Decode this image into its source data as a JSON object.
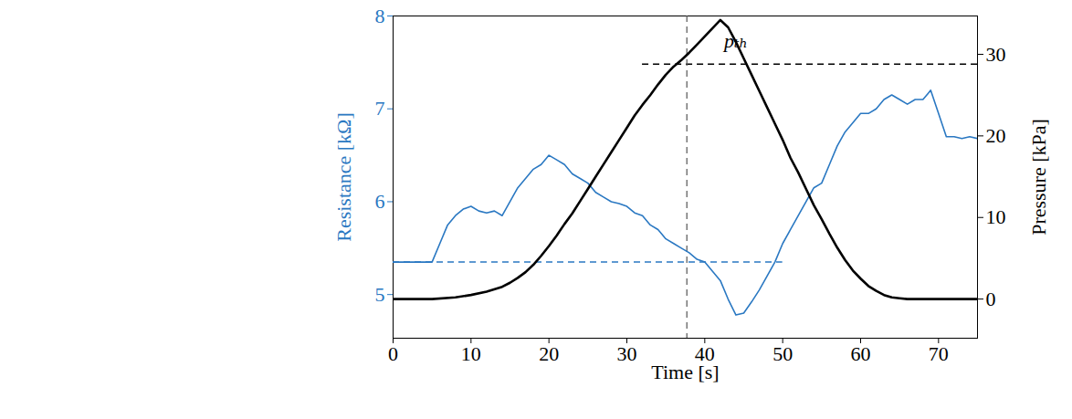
{
  "chart_data": {
    "type": "line",
    "xlabel": "Time [s]",
    "ylabel": "Resistance [kΩ]",
    "y2label": "Pressure [kPa]",
    "xlim": [
      0,
      75
    ],
    "xticks": [
      0,
      10,
      20,
      30,
      40,
      50,
      60,
      70
    ],
    "ylim": [
      4.53,
      8
    ],
    "yticks": [
      5,
      6,
      7,
      8
    ],
    "y2lim": [
      -4.8,
      34.7
    ],
    "y2ticks": [
      0,
      10,
      20,
      30
    ],
    "grid": false,
    "series": [
      {
        "name": "Resistance [kΩ]",
        "color": "#2a78c2",
        "axis": "y",
        "x": [
          0,
          5,
          6,
          7,
          8,
          9,
          10,
          11,
          12,
          13,
          14,
          15,
          16,
          17,
          18,
          19,
          20,
          21,
          22,
          23,
          24,
          25,
          26,
          27,
          28,
          29,
          30,
          31,
          32,
          33,
          34,
          35,
          36,
          37,
          38,
          39,
          40,
          41,
          42,
          43,
          44,
          45,
          46,
          47,
          48,
          49,
          50,
          51,
          52,
          53,
          54,
          55,
          56,
          57,
          58,
          59,
          60,
          61,
          62,
          63,
          64,
          65,
          66,
          67,
          68,
          69,
          70,
          71,
          72,
          73,
          74,
          75
        ],
        "values": [
          5.35,
          5.35,
          5.55,
          5.75,
          5.85,
          5.92,
          5.95,
          5.9,
          5.88,
          5.9,
          5.85,
          6.0,
          6.15,
          6.25,
          6.35,
          6.4,
          6.5,
          6.45,
          6.4,
          6.3,
          6.25,
          6.2,
          6.1,
          6.05,
          6.0,
          5.98,
          5.95,
          5.88,
          5.85,
          5.75,
          5.7,
          5.6,
          5.55,
          5.5,
          5.45,
          5.38,
          5.35,
          5.25,
          5.15,
          4.95,
          4.78,
          4.8,
          4.92,
          5.05,
          5.2,
          5.35,
          5.55,
          5.7,
          5.85,
          6.0,
          6.15,
          6.2,
          6.4,
          6.6,
          6.75,
          6.85,
          6.95,
          6.95,
          7.0,
          7.1,
          7.15,
          7.1,
          7.05,
          7.1,
          7.1,
          7.2,
          6.95,
          6.7,
          6.7,
          6.68,
          6.7,
          6.68
        ]
      },
      {
        "name": "Pressure [kPa]",
        "color": "#000000",
        "axis": "y2",
        "x": [
          0,
          5,
          8,
          10,
          12,
          14,
          15,
          16,
          17,
          18,
          19,
          20,
          21,
          22,
          23,
          24,
          25,
          26,
          27,
          28,
          29,
          30,
          31,
          32,
          33,
          34,
          35,
          36,
          37,
          38,
          39,
          40,
          41,
          42,
          43,
          44,
          45,
          46,
          47,
          48,
          49,
          50,
          51,
          52,
          53,
          54,
          55,
          56,
          57,
          58,
          59,
          60,
          61,
          62,
          63,
          64,
          65,
          66,
          70,
          75
        ],
        "values": [
          0,
          0,
          0.2,
          0.5,
          0.9,
          1.5,
          2,
          2.6,
          3.3,
          4.2,
          5.3,
          6.5,
          7.8,
          9.2,
          10.5,
          12,
          13.5,
          15,
          16.5,
          18,
          19.5,
          21,
          22.5,
          23.8,
          25,
          26.3,
          27.5,
          28.5,
          29.3,
          30.2,
          31.2,
          32.2,
          33.2,
          34.2,
          33.3,
          31.5,
          29.5,
          27.5,
          25.5,
          23.5,
          21.5,
          19.5,
          17.3,
          15.5,
          13.5,
          11.5,
          9.8,
          8,
          6.3,
          4.8,
          3.5,
          2.5,
          1.6,
          1,
          0.5,
          0.2,
          0.1,
          0,
          0,
          0
        ]
      }
    ],
    "reference_lines": [
      {
        "y": 28.8,
        "x": [
          32,
          75
        ],
        "axis": "y2",
        "color": "#000000",
        "line_style": "dashed"
      },
      {
        "x": 37.7,
        "color": "#555555",
        "line_style": "dashed"
      },
      {
        "y": 5.35,
        "x": [
          0,
          50
        ],
        "axis": "y",
        "color": "#2a78c2",
        "line_style": "dashed"
      }
    ],
    "annotations": [
      {
        "text": "pₜₕ",
        "x": 44,
        "y": 31.6,
        "axis": "y2"
      }
    ]
  }
}
